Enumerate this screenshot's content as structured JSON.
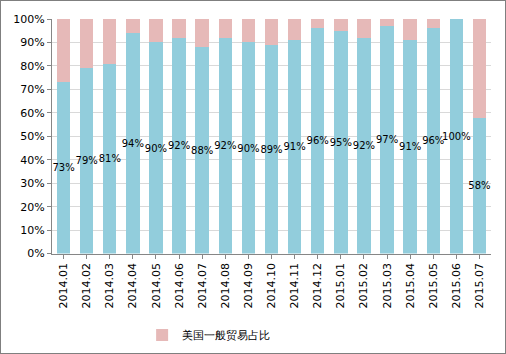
{
  "chart_data": {
    "type": "bar",
    "stacked": true,
    "grid": true,
    "legend": "bottom",
    "categories": [
      "2014.01",
      "2014.02",
      "2014.03",
      "2014.04",
      "2014.05",
      "2014.06",
      "2014.07",
      "2014.08",
      "2014.09",
      "2014.10",
      "2014.11",
      "2014.12",
      "2015.01",
      "2015.02",
      "2015.03",
      "2015.04",
      "2015.05",
      "2015.06",
      "2015.07"
    ],
    "ylim": [
      0,
      100
    ],
    "yticks": [
      {
        "value": 0,
        "label": "0%"
      },
      {
        "value": 10,
        "label": "10%"
      },
      {
        "value": 20,
        "label": "20%"
      },
      {
        "value": 30,
        "label": "30%"
      },
      {
        "value": 40,
        "label": "40%"
      },
      {
        "value": 50,
        "label": "50%"
      },
      {
        "value": 60,
        "label": "60%"
      },
      {
        "value": 70,
        "label": "70%"
      },
      {
        "value": 80,
        "label": "80%"
      },
      {
        "value": 90,
        "label": "90%"
      },
      {
        "value": 100,
        "label": "100%"
      }
    ],
    "series": [
      {
        "color": "#92cddc",
        "data_labels": true,
        "values": [
          73,
          79,
          81,
          94,
          90,
          92,
          88,
          92,
          90,
          89,
          91,
          96,
          95,
          92,
          97,
          91,
          96,
          100,
          58
        ],
        "value_labels": [
          "73%",
          "79%",
          "81%",
          "94%",
          "90%",
          "92%",
          "88%",
          "92%",
          "90%",
          "89%",
          "91%",
          "96%",
          "95%",
          "92%",
          "97%",
          "91%",
          "96%",
          "100%",
          "58%"
        ]
      },
      {
        "name": "美国一般贸易占比",
        "color": "#e6b9b8",
        "values": [
          27,
          21,
          19,
          6,
          10,
          8,
          12,
          8,
          10,
          11,
          9,
          4,
          5,
          8,
          3,
          9,
          4,
          0,
          42
        ]
      }
    ]
  }
}
